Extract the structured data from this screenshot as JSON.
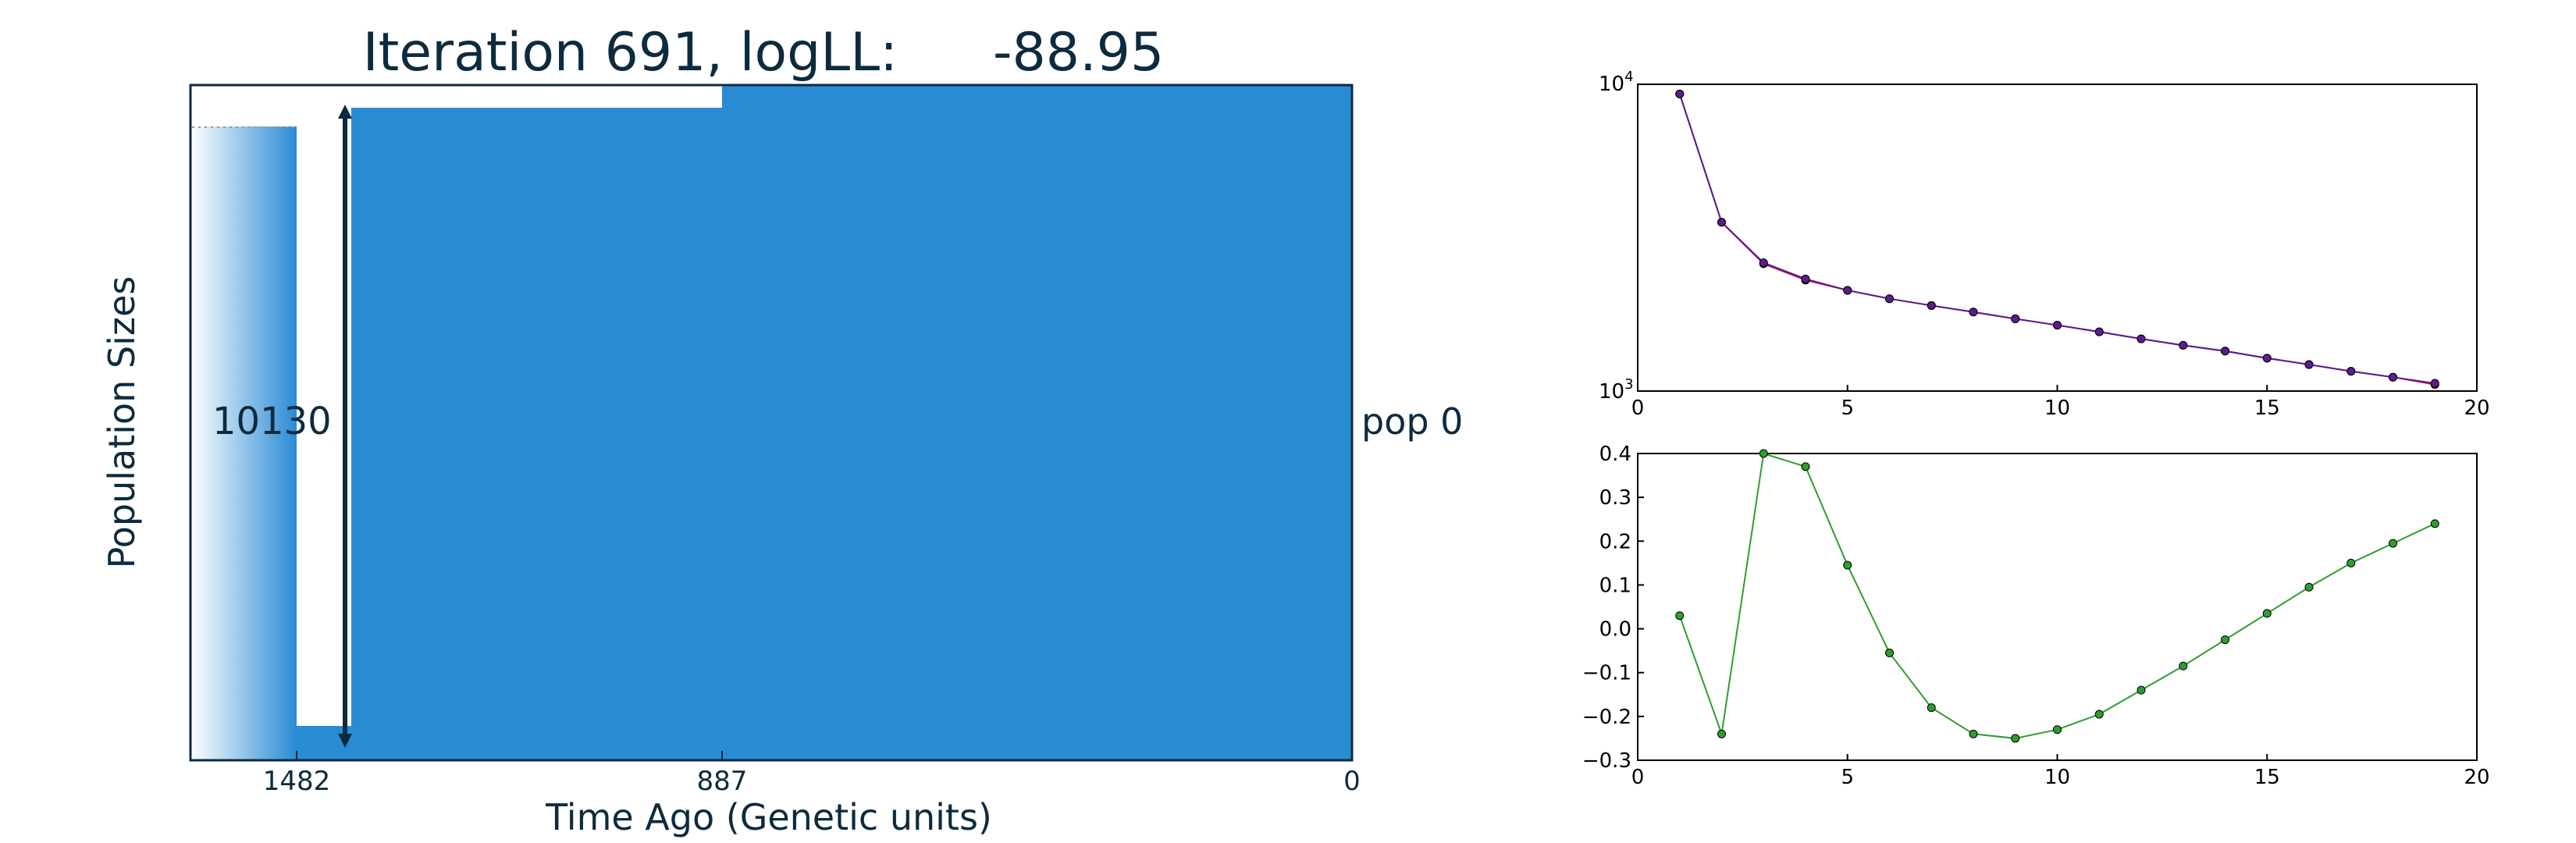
{
  "chart_data": [
    {
      "type": "area",
      "title": "Iteration 691, logLL:",
      "title_value": "-88.95",
      "xlabel": "Time Ago (Genetic units)",
      "ylabel": "Population Sizes",
      "x_ticks": [
        "1482",
        "887",
        "0"
      ],
      "population_label": "pop 0",
      "size_annotation": "10130",
      "fill_color": "#2A8BD5",
      "text_color": "#0D2B3E"
    },
    {
      "type": "line",
      "y_scale": "log",
      "xlim": [
        0,
        20
      ],
      "ylim": [
        1000,
        10000
      ],
      "x_ticks": [
        "0",
        "5",
        "10",
        "15",
        "20"
      ],
      "y_ticks": [
        {
          "base": "10",
          "exp": "4"
        },
        {
          "base": "10",
          "exp": "3"
        }
      ],
      "x": [
        1,
        2,
        3,
        4,
        5,
        6,
        7,
        8,
        9,
        10,
        11,
        12,
        13,
        14,
        15,
        16,
        17,
        18,
        19
      ],
      "series": [
        {
          "color": "#C0143C",
          "values": [
            9300,
            3550,
            2600,
            2300,
            2130,
            2000,
            1900,
            1810,
            1720,
            1640,
            1560,
            1480,
            1410,
            1350,
            1280,
            1220,
            1160,
            1110,
            1050
          ]
        },
        {
          "color": "#5A1E8C",
          "values": [
            9300,
            3550,
            2620,
            2320,
            2130,
            2000,
            1900,
            1810,
            1720,
            1640,
            1560,
            1480,
            1410,
            1350,
            1280,
            1220,
            1160,
            1110,
            1060
          ]
        }
      ]
    },
    {
      "type": "line",
      "xlim": [
        0,
        20
      ],
      "ylim": [
        -0.3,
        0.4
      ],
      "x_ticks": [
        "0",
        "5",
        "10",
        "15",
        "20"
      ],
      "y_ticks": [
        "0.4",
        "0.3",
        "0.2",
        "0.1",
        "0.0",
        "−0.1",
        "−0.2",
        "−0.3"
      ],
      "x": [
        1,
        2,
        3,
        4,
        5,
        6,
        7,
        8,
        9,
        10,
        11,
        12,
        13,
        14,
        15,
        16,
        17,
        18,
        19
      ],
      "series": [
        {
          "color": "#2E9E2E",
          "values": [
            0.03,
            -0.24,
            0.4,
            0.37,
            0.145,
            -0.055,
            -0.18,
            -0.24,
            -0.25,
            -0.23,
            -0.195,
            -0.14,
            -0.085,
            -0.025,
            0.035,
            0.095,
            0.15,
            0.195,
            0.24
          ]
        }
      ]
    }
  ]
}
